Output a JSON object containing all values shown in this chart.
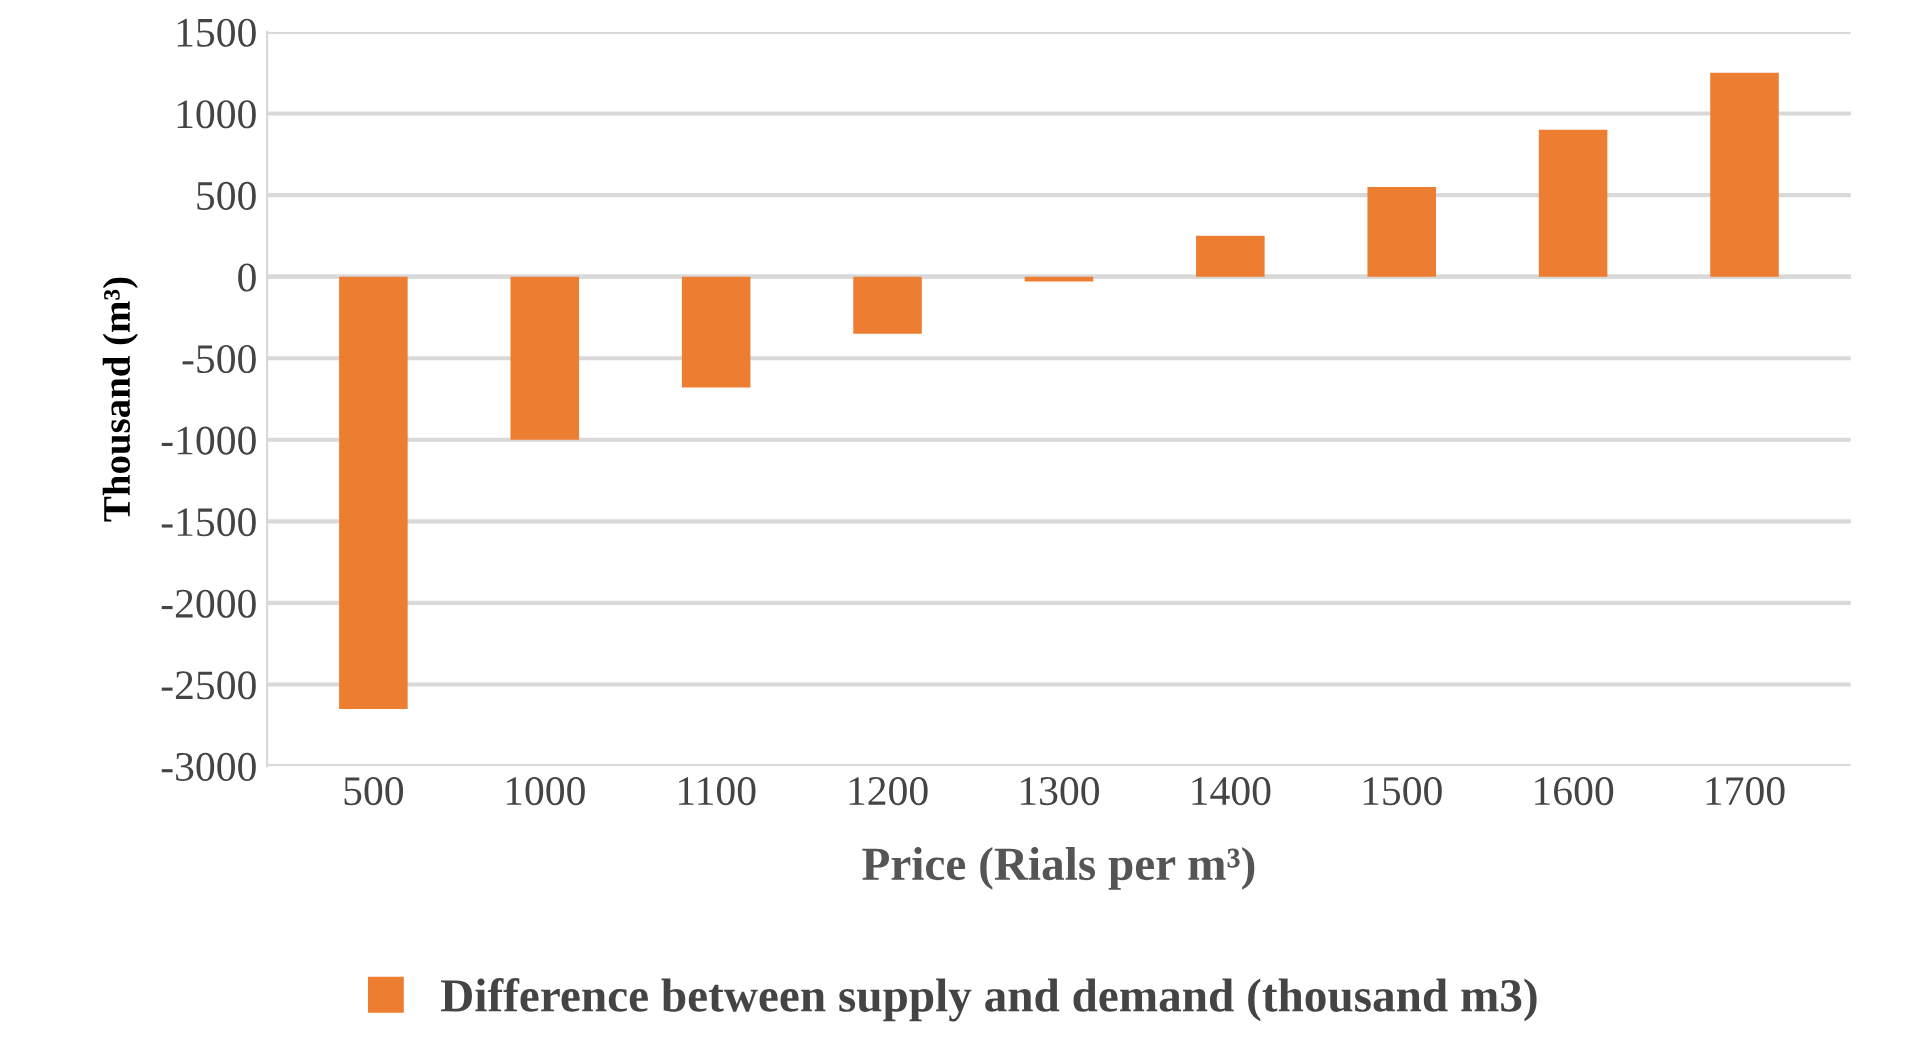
{
  "chart_data": {
    "type": "bar",
    "xlabel": "Price (Rials per m³)",
    "ylabel": "Thousand (m³)",
    "categories": [
      "500",
      "1000",
      "1100",
      "1200",
      "1300",
      "1400",
      "1500",
      "1600",
      "1700"
    ],
    "series": [
      {
        "name": "Difference between supply and demand (thousand m3)",
        "color": "#ed7d31",
        "values": [
          -2650,
          -1000,
          -680,
          -350,
          -30,
          250,
          550,
          900,
          1250
        ]
      }
    ],
    "ylim": [
      -3000,
      1500
    ],
    "yticks": [
      -3000,
      -2500,
      -2000,
      -1500,
      -1000,
      -500,
      0,
      500,
      1000,
      1500
    ],
    "grid": "y",
    "legend": "bottom"
  }
}
